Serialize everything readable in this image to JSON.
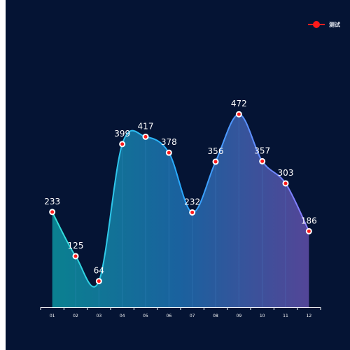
{
  "chart_data": {
    "type": "area",
    "categories": [
      "01",
      "02",
      "03",
      "04",
      "05",
      "06",
      "07",
      "08",
      "09",
      "10",
      "11",
      "12"
    ],
    "series": [
      {
        "name": "测试",
        "values": [
          233,
          125,
          64,
          399,
          417,
          378,
          232,
          356,
          472,
          357,
          303,
          186
        ]
      }
    ],
    "ylim": [
      0,
      700
    ],
    "grid": false,
    "smooth": true,
    "legend_position": "top-right",
    "colors": {
      "background": "#051434",
      "line_start": "#33e0d8",
      "line_mid": "#29a9ff",
      "line_end": "#8a7bff",
      "area_start": "#0b8a98",
      "area_mid": "#1c68a8",
      "area_end": "#5a4aa0",
      "point_fill": "#ff1a1a",
      "point_stroke": "#ffffff",
      "label": "#ffffff",
      "axis": "#ffffff",
      "legend": "#ff1a1a"
    }
  }
}
